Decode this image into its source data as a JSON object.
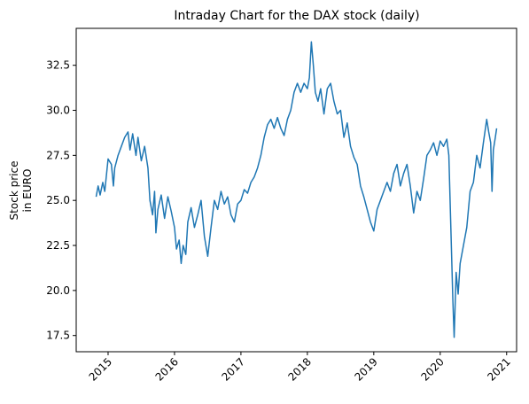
{
  "chart_data": {
    "type": "line",
    "title": "Intraday Chart for the DAX stock (daily)",
    "ylabel": [
      "Stock price",
      "in EURO"
    ],
    "xlim": [
      2014.52,
      2021.15
    ],
    "xticks": [
      2015,
      2016,
      2017,
      2018,
      2019,
      2020,
      2021
    ],
    "ylim": [
      16.6,
      34.55
    ],
    "yticks": [
      {
        "value": 17.5,
        "label": "17.5"
      },
      {
        "value": 20.0,
        "label": "20.0"
      },
      {
        "value": 22.5,
        "label": "22.5"
      },
      {
        "value": 25.0,
        "label": "25.0"
      },
      {
        "value": 27.5,
        "label": "27.5"
      },
      {
        "value": 30.0,
        "label": "30.0"
      },
      {
        "value": 32.5,
        "label": "32.5"
      }
    ],
    "grid": false,
    "series": [
      {
        "color": "#1f77b4",
        "x": [
          2014.82,
          2014.85,
          2014.88,
          2014.92,
          2014.95,
          2015.0,
          2015.05,
          2015.08,
          2015.1,
          2015.15,
          2015.2,
          2015.25,
          2015.3,
          2015.33,
          2015.37,
          2015.42,
          2015.45,
          2015.5,
          2015.55,
          2015.6,
          2015.63,
          2015.67,
          2015.7,
          2015.72,
          2015.75,
          2015.8,
          2015.85,
          2015.9,
          2015.95,
          2016.0,
          2016.03,
          2016.07,
          2016.1,
          2016.13,
          2016.17,
          2016.2,
          2016.25,
          2016.3,
          2016.35,
          2016.4,
          2016.45,
          2016.5,
          2016.55,
          2016.6,
          2016.65,
          2016.7,
          2016.75,
          2016.8,
          2016.85,
          2016.9,
          2016.95,
          2017.0,
          2017.05,
          2017.1,
          2017.15,
          2017.2,
          2017.25,
          2017.3,
          2017.35,
          2017.4,
          2017.45,
          2017.5,
          2017.55,
          2017.6,
          2017.65,
          2017.7,
          2017.75,
          2017.8,
          2017.85,
          2017.9,
          2017.95,
          2018.0,
          2018.03,
          2018.06,
          2018.09,
          2018.12,
          2018.16,
          2018.2,
          2018.25,
          2018.3,
          2018.35,
          2018.4,
          2018.45,
          2018.5,
          2018.55,
          2018.6,
          2018.65,
          2018.7,
          2018.75,
          2018.8,
          2018.85,
          2018.9,
          2018.95,
          2019.0,
          2019.05,
          2019.1,
          2019.15,
          2019.2,
          2019.25,
          2019.3,
          2019.35,
          2019.4,
          2019.45,
          2019.5,
          2019.55,
          2019.6,
          2019.65,
          2019.7,
          2019.75,
          2019.8,
          2019.85,
          2019.9,
          2019.95,
          2020.0,
          2020.05,
          2020.1,
          2020.13,
          2020.16,
          2020.19,
          2020.21,
          2020.24,
          2020.27,
          2020.3,
          2020.35,
          2020.4,
          2020.45,
          2020.5,
          2020.55,
          2020.6,
          2020.65,
          2020.7,
          2020.73,
          2020.76,
          2020.78,
          2020.8,
          2020.83,
          2020.85
        ],
        "values": [
          25.2,
          25.8,
          25.3,
          26.0,
          25.5,
          27.3,
          27.0,
          25.8,
          26.8,
          27.5,
          28.0,
          28.5,
          28.8,
          27.8,
          28.7,
          27.5,
          28.5,
          27.2,
          28.0,
          26.8,
          25.0,
          24.2,
          25.5,
          23.2,
          24.5,
          25.3,
          24.0,
          25.2,
          24.4,
          23.5,
          22.3,
          22.8,
          21.5,
          22.5,
          22.0,
          23.8,
          24.6,
          23.5,
          24.2,
          25.0,
          23.0,
          21.9,
          23.5,
          25.0,
          24.5,
          25.5,
          24.8,
          25.2,
          24.2,
          23.8,
          24.8,
          25.0,
          25.6,
          25.4,
          26.0,
          26.3,
          26.8,
          27.5,
          28.5,
          29.2,
          29.5,
          29.0,
          29.6,
          29.0,
          28.6,
          29.5,
          30.0,
          31.0,
          31.5,
          31.0,
          31.5,
          31.2,
          31.8,
          33.8,
          32.5,
          31.0,
          30.5,
          31.2,
          29.8,
          31.2,
          31.5,
          30.5,
          29.8,
          30.0,
          28.5,
          29.3,
          28.0,
          27.4,
          27.0,
          25.8,
          25.2,
          24.5,
          23.8,
          23.3,
          24.5,
          25.0,
          25.5,
          26.0,
          25.5,
          26.5,
          27.0,
          25.8,
          26.5,
          27.0,
          25.8,
          24.3,
          25.5,
          25.0,
          26.2,
          27.5,
          27.8,
          28.2,
          27.5,
          28.3,
          28.0,
          28.4,
          27.5,
          23.5,
          19.5,
          17.4,
          21.0,
          19.8,
          21.5,
          22.5,
          23.5,
          25.5,
          26.0,
          27.5,
          26.8,
          28.2,
          29.5,
          28.8,
          28.2,
          25.5,
          27.8,
          28.5,
          29.0
        ]
      }
    ]
  }
}
